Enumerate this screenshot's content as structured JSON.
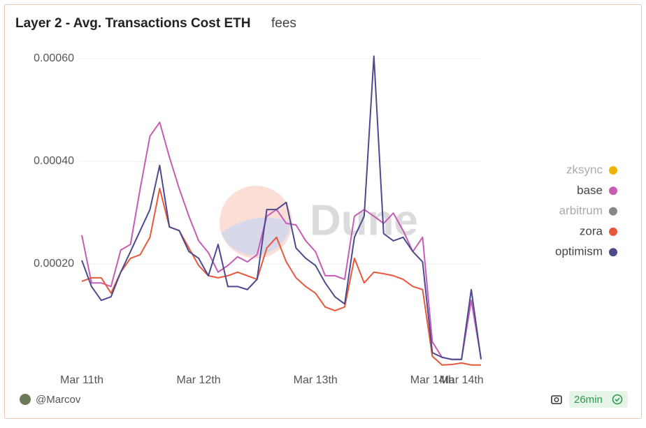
{
  "chart_data": {
    "type": "line",
    "title": "Layer 2 - Avg. Transactions Cost ETH",
    "subtitle": "fees",
    "watermark": "Dune",
    "author": "@Marcov",
    "refresh": "26min",
    "categories": [
      "Mar 11th",
      null,
      null,
      null,
      null,
      null,
      null,
      null,
      null,
      null,
      null,
      null,
      "Mar 12th",
      null,
      null,
      null,
      null,
      null,
      null,
      null,
      null,
      null,
      null,
      null,
      "Mar 13th",
      null,
      null,
      null,
      null,
      null,
      null,
      null,
      null,
      null,
      null,
      null,
      "Mar 14th",
      null,
      null,
      "Mar 14th",
      null,
      null
    ],
    "ylim": [
      0,
      0.00061
    ],
    "yticks": [
      {
        "value": 0.0002,
        "label": "0.00020"
      },
      {
        "value": 0.0004,
        "label": "0.00040"
      },
      {
        "value": 0.0006,
        "label": "0.00060"
      }
    ],
    "grid": true,
    "legend": "right",
    "series": [
      {
        "name": "zksync",
        "color": "#f0b400",
        "visible": false,
        "values": [
          null,
          null,
          null,
          null,
          null,
          null,
          null,
          null,
          null,
          null,
          null,
          null,
          null,
          null,
          null,
          null,
          null,
          null,
          null,
          null,
          null,
          null,
          null,
          null,
          null,
          null,
          null,
          null,
          null,
          null,
          null,
          null,
          null,
          null,
          null,
          null,
          null,
          null,
          null,
          null,
          null,
          null
        ]
      },
      {
        "name": "base",
        "color": "#c85bb5",
        "visible": true,
        "values": [
          0.000256,
          0.000163,
          0.000163,
          0.000156,
          0.000227,
          0.000238,
          0.000347,
          0.000449,
          0.000476,
          0.000408,
          0.000347,
          0.000293,
          0.000245,
          0.000222,
          0.000184,
          0.000197,
          0.000214,
          0.000204,
          0.000218,
          0.000293,
          0.000306,
          0.000279,
          0.000276,
          0.000245,
          0.000224,
          0.000177,
          0.000177,
          0.00017,
          0.000293,
          0.000306,
          0.000293,
          0.000279,
          0.000299,
          0.000265,
          0.000224,
          0.000252,
          4.8e-05,
          1.8e-05,
          1.4e-05,
          1.4e-05,
          0.000129,
          1.6e-05
        ]
      },
      {
        "name": "arbitrum",
        "color": "#888888",
        "visible": false,
        "values": [
          null,
          null,
          null,
          null,
          null,
          null,
          null,
          null,
          null,
          null,
          null,
          null,
          null,
          null,
          null,
          null,
          null,
          null,
          null,
          null,
          null,
          null,
          null,
          null,
          null,
          null,
          null,
          null,
          null,
          null,
          null,
          null,
          null,
          null,
          null,
          null,
          null,
          null,
          null,
          null,
          null,
          null
        ]
      },
      {
        "name": "zora",
        "color": "#e8583a",
        "visible": true,
        "values": [
          0.000166,
          0.000173,
          0.000173,
          0.000143,
          0.000184,
          0.000211,
          0.000218,
          0.000252,
          0.000347,
          0.000272,
          0.000265,
          0.000231,
          0.000197,
          0.000177,
          0.000173,
          0.000177,
          0.000184,
          0.000177,
          0.00017,
          0.000231,
          0.000252,
          0.000204,
          0.000173,
          0.000156,
          0.000143,
          0.000116,
          0.000109,
          0.000116,
          0.000211,
          0.000163,
          0.000184,
          0.000181,
          0.000177,
          0.00017,
          0.000156,
          0.00015,
          2e-05,
          3e-06,
          4e-06,
          7e-06,
          3e-06,
          3e-06
        ]
      },
      {
        "name": "optimism",
        "color": "#4b4a8f",
        "visible": true,
        "values": [
          0.000207,
          0.000156,
          0.000129,
          0.000136,
          0.000184,
          0.000224,
          0.000265,
          0.000306,
          0.000392,
          0.000272,
          0.000265,
          0.000224,
          0.000211,
          0.000177,
          0.000238,
          0.000156,
          0.000156,
          0.00015,
          0.00017,
          0.000306,
          0.000306,
          0.00032,
          0.000231,
          0.000211,
          0.000197,
          0.000163,
          0.000136,
          0.000122,
          0.000252,
          0.000293,
          0.000605,
          0.000259,
          0.000245,
          0.000252,
          0.000224,
          0.000204,
          2.7e-05,
          1.8e-05,
          1.4e-05,
          1.4e-05,
          0.00015,
          1.4e-05
        ]
      }
    ]
  }
}
